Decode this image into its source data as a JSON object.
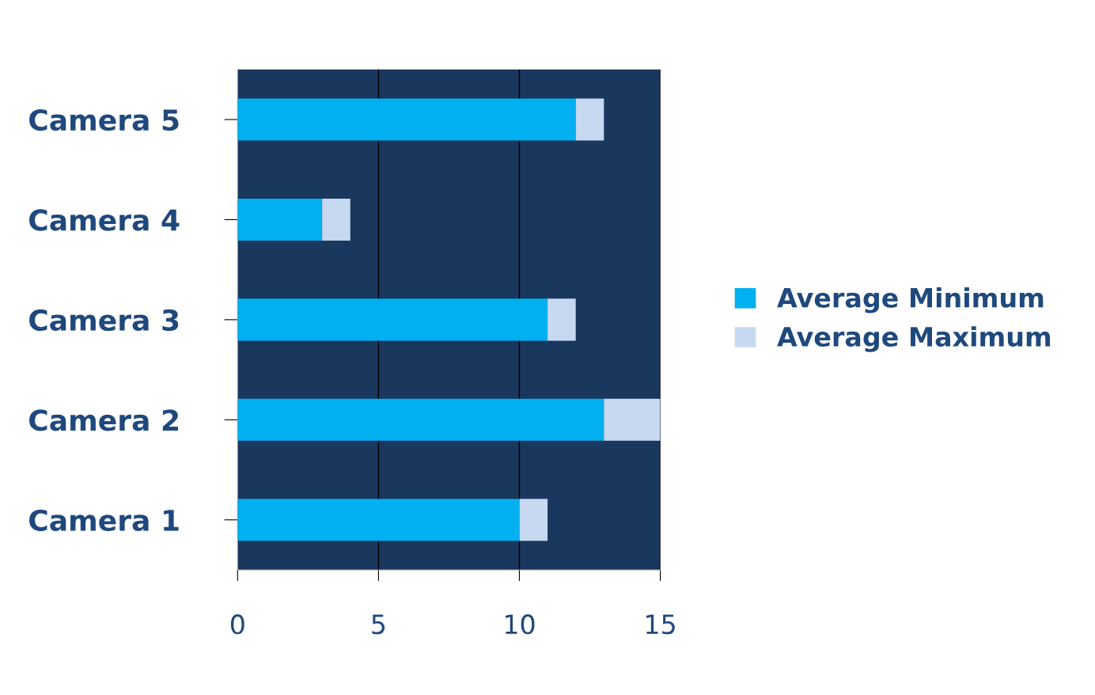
{
  "chart_data": {
    "type": "bar",
    "orientation": "horizontal",
    "stacked": true,
    "categories": [
      "Camera 5",
      "Camera 4",
      "Camera 3",
      "Camera 2",
      "Camera 1"
    ],
    "series": [
      {
        "name": "Average Minimum",
        "color": "#00b0f0",
        "values": [
          12,
          3,
          11,
          13,
          10
        ]
      },
      {
        "name": "Average Maximum",
        "color": "#c6d9f1",
        "values": [
          1,
          1,
          1,
          2,
          1
        ]
      }
    ],
    "xlim": [
      0,
      15
    ],
    "xticks": [
      0,
      5,
      10,
      15
    ],
    "grid": "x",
    "legend": "right"
  }
}
